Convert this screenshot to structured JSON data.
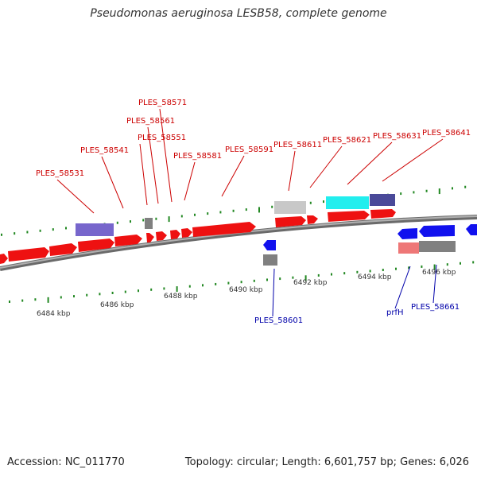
{
  "title": "Pseudomonas aeruginosa LESB58, complete genome",
  "footer": {
    "accession": "Accession: NC_011770",
    "summary": "Topology: circular; Length: 6,601,757 bp; Genes: 6,026"
  },
  "colors": {
    "forward": "#ee1111",
    "reverse": "#1111ee",
    "forward_label": "#cc0000",
    "reverse_label": "#0000aa",
    "backbone": "#8a8a8a",
    "tick": "#228822",
    "gray": "#808080",
    "light_gray": "#c8c8c8",
    "cyan": "#22eeee",
    "slate": "#4a4a99",
    "lavender": "#7766cc",
    "pink": "#ee7777"
  },
  "tick_labels": [
    {
      "text": "6484 kbp"
    },
    {
      "text": "6486 kbp"
    },
    {
      "text": "6488 kbp"
    },
    {
      "text": "6490 kbp"
    },
    {
      "text": "6492 kbp"
    },
    {
      "text": "6494 kbp"
    },
    {
      "text": "6496 kbp"
    }
  ],
  "gene_labels": [
    {
      "text": "PLES_58531",
      "strand": "forward"
    },
    {
      "text": "PLES_58541",
      "strand": "forward"
    },
    {
      "text": "PLES_58551",
      "strand": "forward"
    },
    {
      "text": "PLES_58561",
      "strand": "forward"
    },
    {
      "text": "PLES_58571",
      "strand": "forward"
    },
    {
      "text": "PLES_58581",
      "strand": "forward"
    },
    {
      "text": "PLES_58591",
      "strand": "forward"
    },
    {
      "text": "PLES_58611",
      "strand": "forward"
    },
    {
      "text": "PLES_58621",
      "strand": "forward"
    },
    {
      "text": "PLES_58631",
      "strand": "forward"
    },
    {
      "text": "PLES_58641",
      "strand": "forward"
    },
    {
      "text": "PLES_58601",
      "strand": "reverse"
    },
    {
      "text": "prfH",
      "strand": "reverse"
    },
    {
      "text": "PLES_58661",
      "strand": "reverse"
    }
  ]
}
